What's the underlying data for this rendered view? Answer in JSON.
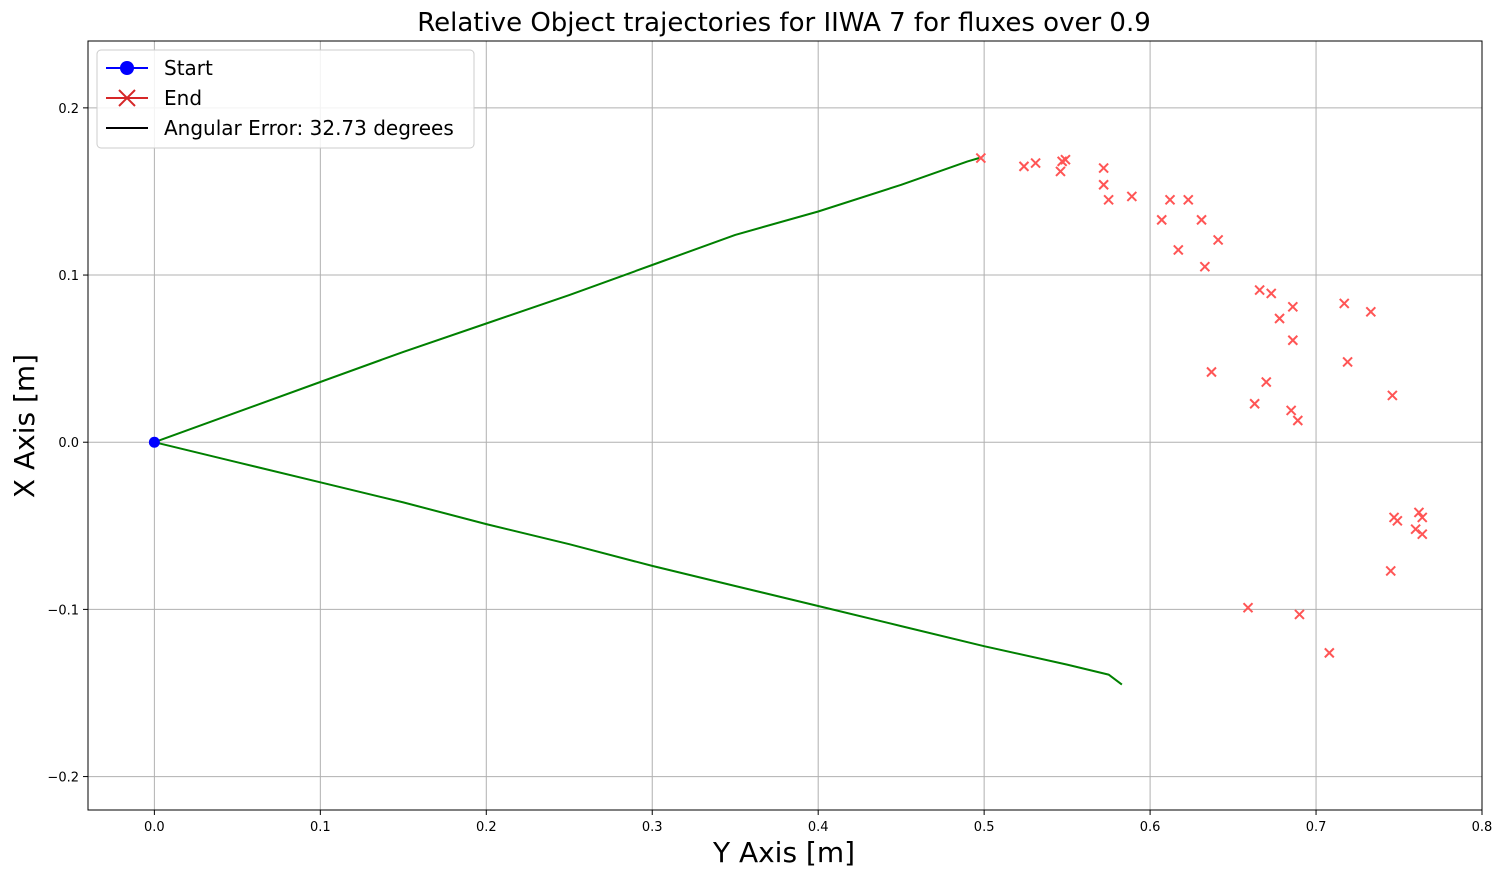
{
  "chart_data": {
    "type": "scatter",
    "title": "Relative Object trajectories for IIWA 7 for fluxes over 0.9",
    "xlabel": "Y Axis [m]",
    "ylabel": "X Axis [m]",
    "xlim": [
      -0.04,
      0.8
    ],
    "ylim": [
      -0.22,
      0.24
    ],
    "grid": true,
    "x_ticks": [
      0.0,
      0.1,
      0.2,
      0.3,
      0.4,
      0.5,
      0.6,
      0.7,
      0.8
    ],
    "x_tick_labels": [
      "0.0",
      "0.1",
      "0.2",
      "0.3",
      "0.4",
      "0.5",
      "0.6",
      "0.7",
      "0.8"
    ],
    "y_ticks": [
      -0.2,
      -0.1,
      0.0,
      0.1,
      0.2
    ],
    "y_tick_labels": [
      "−0.2",
      "−0.1",
      "0.0",
      "0.1",
      "0.2"
    ],
    "legend_placement": "upper-left",
    "legend": [
      {
        "label": "Start",
        "marker": "circle",
        "color": "#0000ff"
      },
      {
        "label": "End",
        "marker": "x",
        "color": "#d62728"
      },
      {
        "label": "Angular Error: 32.73 degrees",
        "marker": "line",
        "color": "#000000"
      }
    ],
    "start_point": {
      "x": 0.0,
      "y": 0.0,
      "color": "#0000ff"
    },
    "trajectories": [
      {
        "color": "#008000",
        "points": [
          [
            0.0,
            0.0
          ],
          [
            0.05,
            0.018
          ],
          [
            0.1,
            0.036
          ],
          [
            0.15,
            0.054
          ],
          [
            0.2,
            0.071
          ],
          [
            0.25,
            0.088
          ],
          [
            0.3,
            0.106
          ],
          [
            0.35,
            0.124
          ],
          [
            0.4,
            0.138
          ],
          [
            0.45,
            0.154
          ],
          [
            0.49,
            0.168
          ],
          [
            0.497,
            0.17
          ]
        ]
      },
      {
        "color": "#008000",
        "points": [
          [
            0.0,
            0.0
          ],
          [
            0.05,
            -0.012
          ],
          [
            0.1,
            -0.024
          ],
          [
            0.15,
            -0.036
          ],
          [
            0.2,
            -0.049
          ],
          [
            0.25,
            -0.061
          ],
          [
            0.3,
            -0.074
          ],
          [
            0.35,
            -0.086
          ],
          [
            0.4,
            -0.098
          ],
          [
            0.45,
            -0.11
          ],
          [
            0.5,
            -0.122
          ],
          [
            0.55,
            -0.133
          ],
          [
            0.575,
            -0.139
          ],
          [
            0.583,
            -0.145
          ]
        ]
      }
    ],
    "end_points": {
      "color": "#ff5555",
      "points": [
        [
          0.498,
          0.17
        ],
        [
          0.524,
          0.165
        ],
        [
          0.531,
          0.167
        ],
        [
          0.546,
          0.162
        ],
        [
          0.547,
          0.168
        ],
        [
          0.549,
          0.169
        ],
        [
          0.572,
          0.164
        ],
        [
          0.572,
          0.154
        ],
        [
          0.575,
          0.145
        ],
        [
          0.589,
          0.147
        ],
        [
          0.607,
          0.133
        ],
        [
          0.612,
          0.145
        ],
        [
          0.617,
          0.115
        ],
        [
          0.623,
          0.145
        ],
        [
          0.631,
          0.133
        ],
        [
          0.633,
          0.105
        ],
        [
          0.637,
          0.042
        ],
        [
          0.641,
          0.121
        ],
        [
          0.659,
          -0.099
        ],
        [
          0.663,
          0.023
        ],
        [
          0.666,
          0.091
        ],
        [
          0.67,
          0.036
        ],
        [
          0.673,
          0.089
        ],
        [
          0.678,
          0.074
        ],
        [
          0.685,
          0.019
        ],
        [
          0.686,
          0.081
        ],
        [
          0.686,
          0.061
        ],
        [
          0.689,
          0.013
        ],
        [
          0.69,
          -0.103
        ],
        [
          0.708,
          -0.126
        ],
        [
          0.717,
          0.083
        ],
        [
          0.719,
          0.048
        ],
        [
          0.733,
          0.078
        ],
        [
          0.745,
          -0.077
        ],
        [
          0.746,
          0.028
        ],
        [
          0.747,
          -0.045
        ],
        [
          0.749,
          -0.047
        ],
        [
          0.76,
          -0.052
        ],
        [
          0.762,
          -0.042
        ],
        [
          0.764,
          -0.045
        ],
        [
          0.764,
          -0.055
        ]
      ]
    }
  }
}
